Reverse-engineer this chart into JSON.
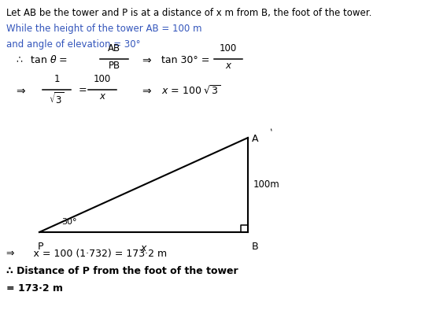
{
  "bg_color": "#ffffff",
  "text_color": "#000000",
  "blue_color": "#3355bb",
  "line1": "Let AB be the tower and P is at a distance of x m from B, the foot of the tower.",
  "line2": "While the height of the tower AB = 100 m",
  "line3": "and angle of elevation = 30°",
  "angle_label": "30°",
  "height_label": "100m",
  "x_label": "x",
  "label_P": "P",
  "label_B": "B",
  "label_A": "A",
  "result_line1": "⇒      x = 100 (1·732) = 173·2 m",
  "result_line2": "∴ Distance of P from the foot of the tower",
  "result_line3": "= 173·2 m",
  "tri_P": [
    0.085,
    0.405
  ],
  "tri_B": [
    0.555,
    0.405
  ],
  "tri_A": [
    0.555,
    0.65
  ]
}
